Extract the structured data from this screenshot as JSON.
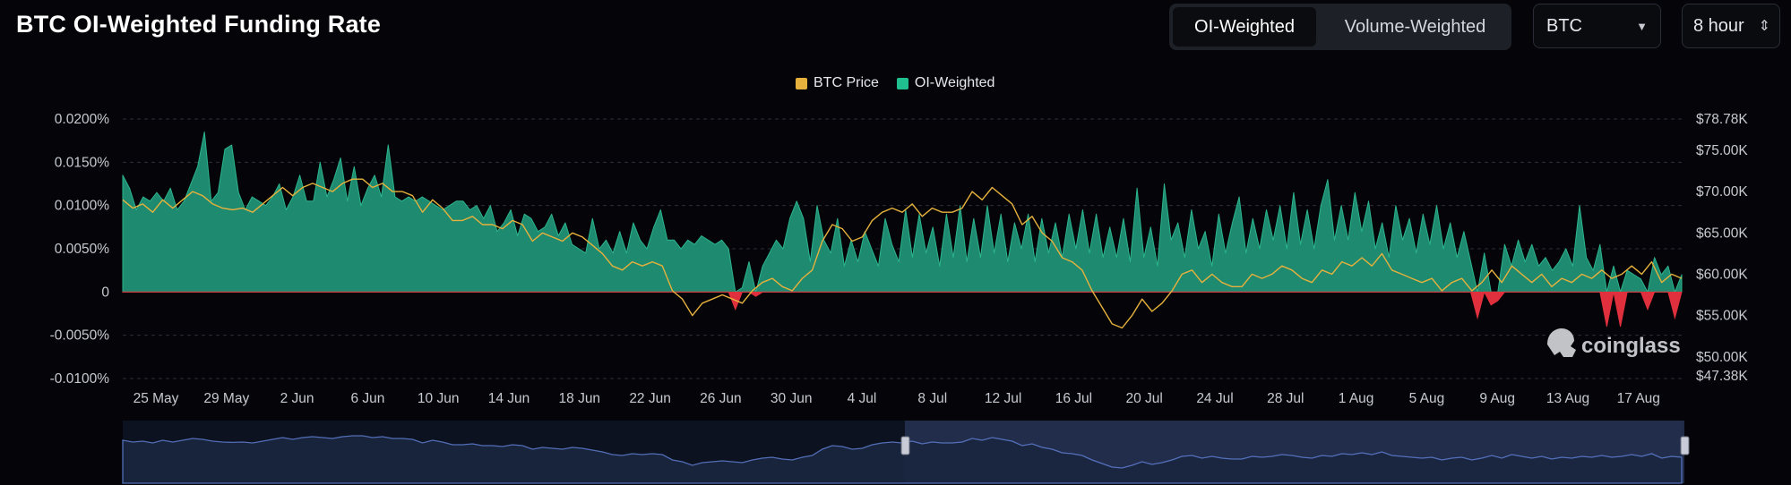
{
  "header": {
    "title": "BTC OI-Weighted Funding Rate",
    "tabs": [
      {
        "label": "OI-Weighted",
        "active": true
      },
      {
        "label": "Volume-Weighted",
        "active": false
      }
    ],
    "coin_select": {
      "value": "BTC"
    },
    "interval_select": {
      "value": "8 hour"
    }
  },
  "watermark": "coinglass",
  "colors": {
    "positive_fill": "#1e8a6f",
    "positive_top": "#2cb58f",
    "negative_fill": "#e0303d",
    "price_line": "#e6b13d",
    "grid": "#2c2f3a",
    "navigator_line": "#5a78c8"
  },
  "icons": {
    "caret": "caret-down-icon",
    "stepper": "updown-icon",
    "watermark": "coinglass-logo-icon"
  },
  "chart_data": {
    "type": "area",
    "title": "BTC OI-Weighted Funding Rate",
    "legend": [
      "BTC Price",
      "OI-Weighted"
    ],
    "legend_position": "top-center",
    "grid": true,
    "x_tick_labels": [
      "25 May",
      "29 May",
      "2 Jun",
      "6 Jun",
      "10 Jun",
      "14 Jun",
      "18 Jun",
      "22 Jun",
      "26 Jun",
      "30 Jun",
      "4 Jul",
      "8 Jul",
      "12 Jul",
      "16 Jul",
      "20 Jul",
      "24 Jul",
      "28 Jul",
      "1 Aug",
      "5 Aug",
      "9 Aug",
      "13 Aug",
      "17 Aug"
    ],
    "x_start_date": "2024-05-23",
    "y_left": {
      "labels": [
        "0.0200%",
        "0.0150%",
        "0.0100%",
        "0.0050%",
        "0",
        "-0.0050%",
        "-0.0100%"
      ],
      "range": [
        -0.01,
        0.02
      ],
      "unit": "%"
    },
    "y_right": {
      "labels": [
        "$78.78K",
        "$75.00K",
        "$70.00K",
        "$65.00K",
        "$60.00K",
        "$55.00K",
        "$50.00K",
        "$47.38K"
      ],
      "range": [
        47380,
        78780
      ]
    },
    "series": [
      {
        "name": "OI-Weighted",
        "axis": "left",
        "values": [
          0.0135,
          0.012,
          0.0095,
          0.011,
          0.0105,
          0.0115,
          0.0105,
          0.012,
          0.0095,
          0.0105,
          0.0125,
          0.0145,
          0.0185,
          0.0105,
          0.0115,
          0.0165,
          0.017,
          0.0115,
          0.0095,
          0.011,
          0.0105,
          0.01,
          0.011,
          0.0125,
          0.0095,
          0.011,
          0.0135,
          0.0105,
          0.0105,
          0.015,
          0.011,
          0.013,
          0.0155,
          0.0105,
          0.0145,
          0.01,
          0.012,
          0.0135,
          0.011,
          0.017,
          0.011,
          0.0105,
          0.011,
          0.0105,
          0.011,
          0.0105,
          0.01,
          0.0095,
          0.01,
          0.0105,
          0.0105,
          0.0095,
          0.01,
          0.0085,
          0.01,
          0.007,
          0.008,
          0.0095,
          0.0065,
          0.009,
          0.0085,
          0.007,
          0.0075,
          0.009,
          0.0065,
          0.008,
          0.0055,
          0.005,
          0.0045,
          0.0085,
          0.005,
          0.006,
          0.0045,
          0.007,
          0.0045,
          0.008,
          0.006,
          0.005,
          0.0075,
          0.0095,
          0.006,
          0.006,
          0.005,
          0.006,
          0.0055,
          0.0065,
          0.006,
          0.0055,
          0.006,
          0.005,
          -0.002,
          0.0005,
          0.0035,
          -0.0005,
          0.003,
          0.0045,
          0.006,
          0.005,
          0.0085,
          0.0105,
          0.0085,
          0.0035,
          0.01,
          0.006,
          0.0045,
          0.0085,
          0.003,
          0.006,
          0.0035,
          0.007,
          0.005,
          0.003,
          0.0085,
          0.0055,
          0.0035,
          0.0095,
          0.004,
          0.009,
          0.0045,
          0.0075,
          0.003,
          0.009,
          0.004,
          0.01,
          0.0035,
          0.0085,
          0.004,
          0.01,
          0.0045,
          0.009,
          0.0035,
          0.008,
          0.005,
          0.009,
          0.0035,
          0.0085,
          0.0045,
          0.008,
          0.004,
          0.009,
          0.005,
          0.0095,
          0.0045,
          0.009,
          0.004,
          0.0075,
          0.004,
          0.0085,
          0.0035,
          0.012,
          0.004,
          0.0075,
          0.003,
          0.0125,
          0.006,
          0.008,
          0.004,
          0.0095,
          0.005,
          0.007,
          0.003,
          0.009,
          0.0045,
          0.008,
          0.011,
          0.0045,
          0.0085,
          0.005,
          0.0095,
          0.006,
          0.01,
          0.005,
          0.0115,
          0.0055,
          0.0095,
          0.005,
          0.01,
          0.013,
          0.006,
          0.01,
          0.006,
          0.0115,
          0.007,
          0.0105,
          0.005,
          0.008,
          0.004,
          0.01,
          0.006,
          0.0085,
          0.0045,
          0.009,
          0.0055,
          0.01,
          0.005,
          0.008,
          0.004,
          0.007,
          0.0035,
          -0.003,
          0.0045,
          -0.0015,
          -0.001,
          0.0055,
          0.003,
          0.006,
          0.0035,
          0.0055,
          0.003,
          0.004,
          0.0025,
          0.0035,
          0.005,
          0.003,
          0.01,
          0.004,
          0.0025,
          0.0055,
          -0.004,
          0.003,
          -0.004,
          0.0025,
          0.002,
          0.0015,
          -0.002,
          0.004,
          0.002,
          0.003,
          -0.003,
          0.002
        ],
        "note": "Values read off the left axis, evenly spaced across the time range, approximate"
      },
      {
        "name": "BTC Price",
        "axis": "right",
        "values": [
          69000,
          68000,
          68500,
          67500,
          69000,
          68000,
          69000,
          70000,
          69500,
          68500,
          68000,
          67800,
          68000,
          67500,
          68500,
          69500,
          70500,
          69500,
          70500,
          71000,
          70500,
          70000,
          71000,
          71500,
          71500,
          70500,
          71000,
          70000,
          70000,
          69500,
          67500,
          69000,
          68000,
          66500,
          66500,
          67000,
          66000,
          66000,
          65500,
          66500,
          66000,
          64000,
          65000,
          64500,
          64000,
          65000,
          64500,
          63500,
          62500,
          61000,
          60500,
          61500,
          61000,
          61500,
          61000,
          58000,
          57000,
          55000,
          56500,
          57000,
          57500,
          57000,
          56500,
          58000,
          59000,
          59500,
          58500,
          58000,
          59500,
          60500,
          64000,
          66000,
          65500,
          64000,
          64500,
          66500,
          67500,
          68000,
          67500,
          68500,
          67000,
          68000,
          67500,
          67500,
          68000,
          70000,
          69000,
          70500,
          69500,
          68500,
          66000,
          67000,
          65000,
          64000,
          62000,
          61500,
          60500,
          58000,
          56000,
          54000,
          53500,
          55000,
          57000,
          55500,
          56500,
          58000,
          60000,
          60500,
          59000,
          60000,
          59000,
          58500,
          58500,
          60000,
          59500,
          60000,
          61000,
          60500,
          59500,
          59000,
          60500,
          60000,
          61500,
          61000,
          62000,
          61000,
          62500,
          60500,
          60000,
          59500,
          59000,
          59500,
          58000,
          59000,
          59500,
          58000,
          59000,
          60500,
          59000,
          61000,
          60000,
          59000,
          60000,
          58500,
          59500,
          59000,
          60000,
          59500,
          60500,
          59500,
          60000,
          61000,
          60000,
          61500,
          59000,
          60000,
          59500
        ]
      }
    ]
  }
}
